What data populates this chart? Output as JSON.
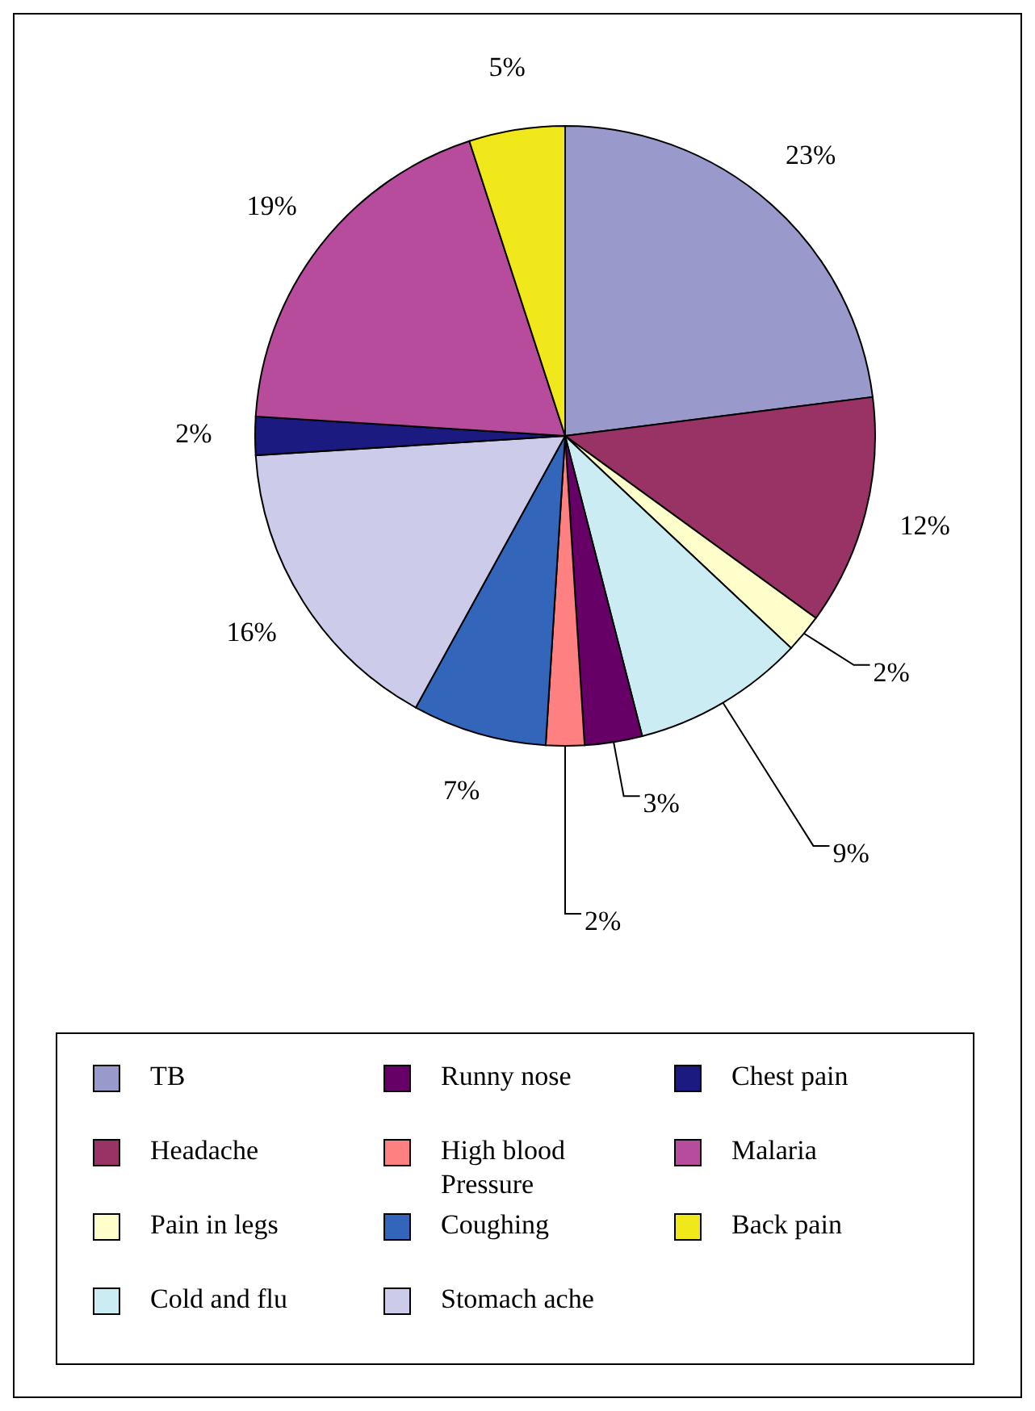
{
  "chart_data": {
    "type": "pie",
    "categories": [
      "TB",
      "Headache",
      "Pain in legs",
      "Cold and flu",
      "Runny nose",
      "High blood Pressure",
      "Coughing",
      "Stomach ache",
      "Chest pain",
      "Malaria",
      "Back pain"
    ],
    "values": [
      23,
      12,
      2,
      9,
      3,
      2,
      7,
      16,
      2,
      19,
      5
    ],
    "colors": [
      "#9999cc",
      "#993366",
      "#ffffcc",
      "#ccecf4",
      "#660066",
      "#ff8080",
      "#3366bb",
      "#ccccea",
      "#1a1a80",
      "#b84c9c",
      "#f0e81a"
    ],
    "value_labels": [
      "23%",
      "12%",
      "2%",
      "9%",
      "3%",
      "2%",
      "7%",
      "16%",
      "2%",
      "19%",
      "5%"
    ],
    "legend": "bottom"
  }
}
